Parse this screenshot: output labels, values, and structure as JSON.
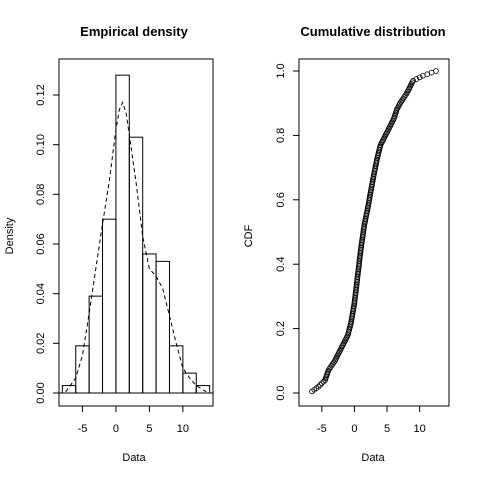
{
  "chart_data": [
    {
      "type": "bar",
      "title": "Empirical density",
      "xlabel": "Data",
      "ylabel": "Density",
      "xlim": [
        -8.5,
        14.5
      ],
      "ylim": [
        0,
        0.13
      ],
      "x_ticks": [
        -5,
        0,
        5,
        10
      ],
      "y_ticks": [
        0.0,
        0.02,
        0.04,
        0.06,
        0.08,
        0.1,
        0.12
      ],
      "bins": [
        {
          "from": -8,
          "to": -6,
          "density": 0.003
        },
        {
          "from": -6,
          "to": -4,
          "density": 0.019
        },
        {
          "from": -4,
          "to": -2,
          "density": 0.039
        },
        {
          "from": -2,
          "to": 0,
          "density": 0.07
        },
        {
          "from": 0,
          "to": 2,
          "density": 0.128
        },
        {
          "from": 2,
          "to": 4,
          "density": 0.103
        },
        {
          "from": 4,
          "to": 6,
          "density": 0.056
        },
        {
          "from": 6,
          "to": 8,
          "density": 0.053
        },
        {
          "from": 8,
          "to": 10,
          "density": 0.019
        },
        {
          "from": 10,
          "to": 12,
          "density": 0.008
        },
        {
          "from": 12,
          "to": 14,
          "density": 0.003
        }
      ],
      "density_curve": {
        "x": [
          -7.5,
          -6,
          -5,
          -4,
          -3,
          -2,
          -1,
          0,
          0.5,
          1,
          1.5,
          2,
          3,
          4,
          5,
          6,
          7,
          8,
          9,
          10,
          11,
          12,
          13.5
        ],
        "y": [
          0.0005,
          0.006,
          0.015,
          0.032,
          0.05,
          0.068,
          0.085,
          0.106,
          0.114,
          0.117,
          0.113,
          0.104,
          0.085,
          0.063,
          0.05,
          0.047,
          0.042,
          0.031,
          0.02,
          0.01,
          0.006,
          0.003,
          0.0005
        ]
      }
    },
    {
      "type": "scatter",
      "title": "Cumulative distribution",
      "xlabel": "Data",
      "ylabel": "CDF",
      "xlim": [
        -8.5,
        14.5
      ],
      "ylim": [
        0,
        1
      ],
      "x_ticks": [
        -5,
        0,
        5,
        10
      ],
      "y_ticks": [
        0.0,
        0.2,
        0.4,
        0.6,
        0.8,
        1.0
      ],
      "cdf_knots": {
        "x": [
          -6.5,
          -5.5,
          -4.5,
          -4.0,
          -3.0,
          -2.0,
          -1.0,
          -0.5,
          0.0,
          0.3,
          1.0,
          1.5,
          2.0,
          3.0,
          3.5,
          4.0,
          5.0,
          6.0,
          6.5,
          7.0,
          8.0,
          9.0,
          10.5,
          12.5
        ],
        "y": [
          0.005,
          0.02,
          0.04,
          0.07,
          0.1,
          0.14,
          0.18,
          0.22,
          0.28,
          0.33,
          0.45,
          0.52,
          0.57,
          0.68,
          0.73,
          0.77,
          0.81,
          0.85,
          0.88,
          0.9,
          0.93,
          0.97,
          0.985,
          1.0
        ]
      },
      "n_points": 200
    }
  ]
}
